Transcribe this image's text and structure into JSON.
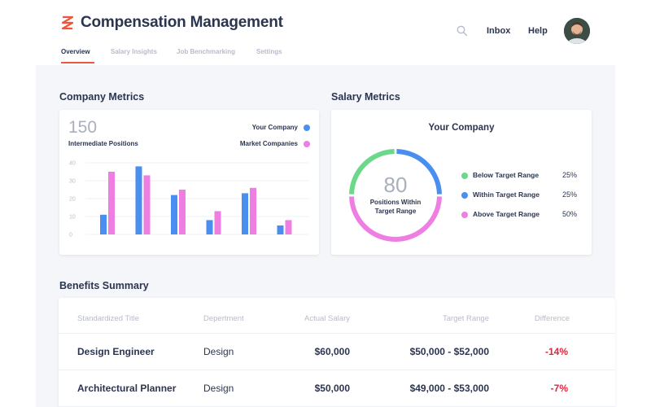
{
  "header": {
    "app_title": "Compensation Management",
    "nav": {
      "inbox": "Inbox",
      "help": "Help"
    },
    "tabs": [
      {
        "label": "Overview",
        "active": true
      },
      {
        "label": "Salary Insights",
        "active": false
      },
      {
        "label": "Job Benchmarking",
        "active": false
      },
      {
        "label": "Settings",
        "active": false
      }
    ]
  },
  "company_metrics": {
    "section_title": "Company Metrics",
    "count": "150",
    "count_label": "Intermediate Positions",
    "legend": {
      "your_company": "Your Company",
      "market": "Market Companies"
    },
    "colors": {
      "your_company": "#4a8ff0",
      "market": "#ef7ee2"
    },
    "chart_data": {
      "type": "bar",
      "ylim": [
        0,
        40
      ],
      "yticks": [
        "0",
        "10",
        "20",
        "30",
        "40"
      ],
      "series": [
        {
          "name": "Your Company",
          "values": [
            11,
            38,
            22,
            8,
            23,
            5
          ]
        },
        {
          "name": "Market Companies",
          "values": [
            35,
            33,
            25,
            13,
            26,
            8
          ]
        }
      ]
    }
  },
  "salary_metrics": {
    "section_title": "Salary Metrics",
    "card_title": "Your Company",
    "center_value": "80",
    "center_caption_line1": "Positions Within",
    "center_caption_line2": "Target Range",
    "items": [
      {
        "label": "Below Target Range",
        "value": "25%",
        "color": "#6cd889",
        "fraction": 0.25
      },
      {
        "label": "Within Target Range",
        "value": "25%",
        "color": "#4a8ff0",
        "fraction": 0.25
      },
      {
        "label": "Above Target Range",
        "value": "50%",
        "color": "#ef7ee2",
        "fraction": 0.5
      }
    ]
  },
  "benefits": {
    "section_title": "Benefits Summary",
    "columns": {
      "title": "Standardized Title",
      "department": "Depertment",
      "salary": "Actual Salary",
      "range": "Target Range",
      "difference": "Difference"
    },
    "rows": [
      {
        "title": "Design Engineer",
        "department": "Design",
        "salary": "$60,000",
        "range": "$50,000 - $52,000",
        "difference": "-14%"
      },
      {
        "title": "Architectural Planner",
        "department": "Design",
        "salary": "$50,000",
        "range": "$49,000 - $53,000",
        "difference": "-7%"
      }
    ]
  }
}
